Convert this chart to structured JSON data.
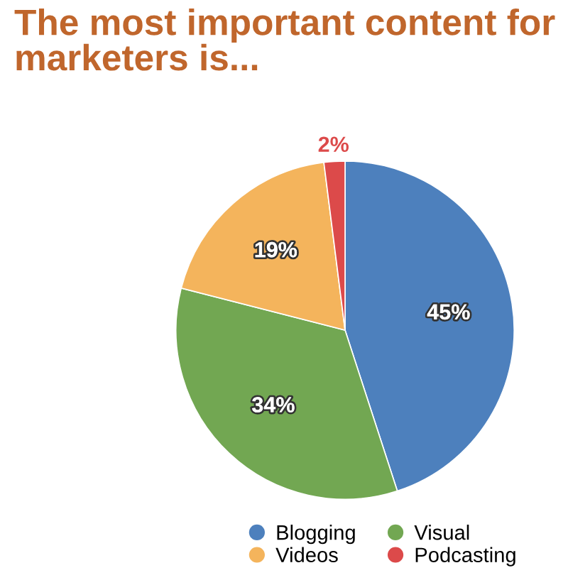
{
  "chart_data": {
    "type": "pie",
    "title": "The most important content for marketers is...",
    "categories": [
      "Blogging",
      "Visual",
      "Videos",
      "Podcasting"
    ],
    "values": [
      45,
      34,
      19,
      2
    ],
    "colors": [
      "#4d80bd",
      "#72a752",
      "#f4b45c",
      "#dc4a4a"
    ],
    "value_labels": [
      "45%",
      "34%",
      "19%",
      "2%"
    ],
    "legend": "bottom"
  }
}
